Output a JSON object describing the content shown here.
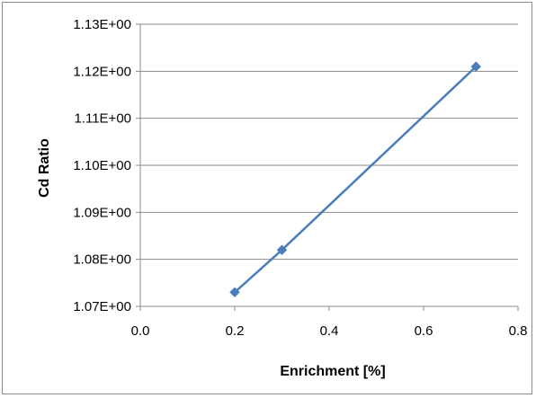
{
  "chart_data": {
    "type": "line",
    "xlabel": "Enrichment [%]",
    "ylabel": "Cd Ratio",
    "xlim": [
      0.0,
      0.8
    ],
    "ylim": [
      1.07,
      1.13
    ],
    "x_ticks": [
      0.0,
      0.2,
      0.4,
      0.6,
      0.8
    ],
    "x_tick_labels": [
      "0.0",
      "0.2",
      "0.4",
      "0.6",
      "0.8"
    ],
    "y_ticks": [
      1.07,
      1.08,
      1.09,
      1.1,
      1.11,
      1.12,
      1.13
    ],
    "y_tick_labels": [
      "1.07E+00",
      "1.08E+00",
      "1.09E+00",
      "1.10E+00",
      "1.11E+00",
      "1.12E+00",
      "1.13E+00"
    ],
    "grid": "horizontal",
    "legend": false,
    "series": [
      {
        "color": "#4a7ebb",
        "marker": "diamond",
        "x": [
          0.2,
          0.3,
          0.711
        ],
        "y": [
          1.073,
          1.082,
          1.121
        ]
      }
    ]
  }
}
